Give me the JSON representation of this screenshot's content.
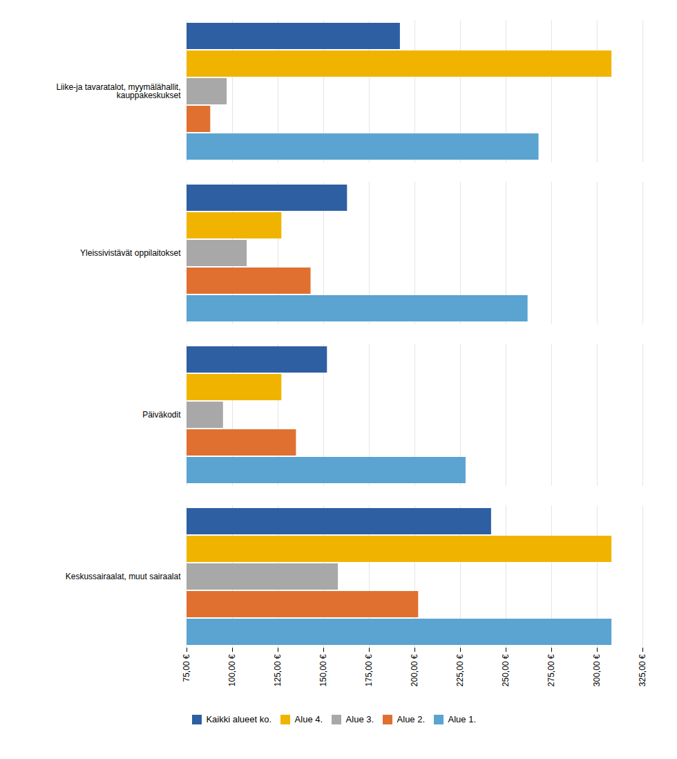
{
  "chart_data": {
    "type": "bar",
    "orientation": "horizontal",
    "categories": [
      "Liike-ja tavaratalot, myymälähallit,\nkauppakeskukset",
      "Yleissivistävät oppilaitokset",
      "Päiväkodit",
      "Keskussairaalat, muut sairaalat"
    ],
    "series": [
      {
        "name": "Kaikki alueet ko.",
        "color": "#2E5FA3",
        "values": [
          192,
          163,
          152,
          242
        ]
      },
      {
        "name": "Alue 4.",
        "color": "#F0B400",
        "values": [
          308,
          127,
          127,
          308
        ]
      },
      {
        "name": "Alue 3.",
        "color": "#A8A8A8",
        "values": [
          97,
          108,
          95,
          158
        ]
      },
      {
        "name": "Alue 2.",
        "color": "#E07030",
        "values": [
          88,
          143,
          135,
          202
        ]
      },
      {
        "name": "Alue 1.",
        "color": "#5BA3D0",
        "values": [
          268,
          262,
          228,
          308
        ]
      }
    ],
    "xlim": [
      75,
      325
    ],
    "xticks": [
      {
        "value": 75,
        "label": "75,00 €"
      },
      {
        "value": 100,
        "label": "100,00 €"
      },
      {
        "value": 125,
        "label": "125,00 €"
      },
      {
        "value": 150,
        "label": "150,00 €"
      },
      {
        "value": 175,
        "label": "175,00 €"
      },
      {
        "value": 200,
        "label": "200,00 €"
      },
      {
        "value": 225,
        "label": "225,00 €"
      },
      {
        "value": 250,
        "label": "250,00 €"
      },
      {
        "value": 275,
        "label": "275,00 €"
      },
      {
        "value": 300,
        "label": "300,00 €"
      },
      {
        "value": 325,
        "label": "325,00 €"
      }
    ],
    "grid": true,
    "legend": "bottom"
  }
}
